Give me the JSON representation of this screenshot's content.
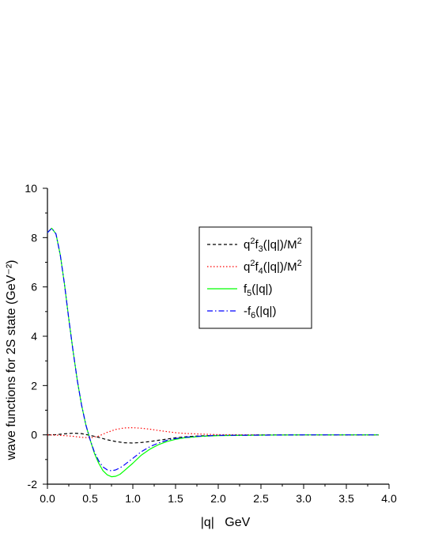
{
  "chart_data": {
    "type": "line",
    "xlabel": "|q|   GeV",
    "ylabel": "wave functions for 2S state (GeV⁻²)",
    "xlim": [
      0.0,
      4.0
    ],
    "ylim": [
      -2,
      10
    ],
    "xticks": [
      "0.0",
      "0.5",
      "1.0",
      "1.5",
      "2.0",
      "2.5",
      "3.0",
      "3.5",
      "4.0"
    ],
    "yticks": [
      "-2",
      "0",
      "2",
      "4",
      "6",
      "8",
      "10"
    ],
    "grid": false,
    "legend_position": "top-right",
    "series": [
      {
        "name": "q²f₃(|q|)/M²",
        "color": "#000000",
        "dash": "dashed",
        "x": [
          0.0,
          0.1,
          0.2,
          0.3,
          0.4,
          0.5,
          0.6,
          0.7,
          0.8,
          0.9,
          1.0,
          1.1,
          1.2,
          1.3,
          1.4,
          1.5,
          1.6,
          1.8,
          2.0,
          2.5,
          3.0,
          3.5,
          3.88
        ],
        "y": [
          0.0,
          0.01,
          0.04,
          0.07,
          0.05,
          -0.02,
          -0.1,
          -0.2,
          -0.27,
          -0.32,
          -0.33,
          -0.31,
          -0.27,
          -0.22,
          -0.17,
          -0.12,
          -0.08,
          -0.04,
          -0.02,
          0.0,
          0.0,
          0.0,
          0.0
        ]
      },
      {
        "name": "q²f₄(|q|)/M²",
        "color": "#ff0000",
        "dash": "dotted",
        "x": [
          0.0,
          0.1,
          0.2,
          0.3,
          0.4,
          0.5,
          0.6,
          0.7,
          0.8,
          0.9,
          1.0,
          1.1,
          1.2,
          1.3,
          1.4,
          1.5,
          1.6,
          1.8,
          2.0,
          2.5,
          3.0,
          3.5,
          3.88
        ],
        "y": [
          0.0,
          -0.01,
          -0.03,
          -0.06,
          -0.1,
          -0.12,
          -0.05,
          0.1,
          0.22,
          0.28,
          0.29,
          0.27,
          0.23,
          0.18,
          0.13,
          0.09,
          0.06,
          0.03,
          0.01,
          0.0,
          0.0,
          0.0,
          0.0
        ]
      },
      {
        "name": "f₅(|q|)",
        "color": "#00ff00",
        "dash": "solid",
        "x": [
          0.0,
          0.05,
          0.1,
          0.15,
          0.2,
          0.25,
          0.3,
          0.35,
          0.4,
          0.45,
          0.5,
          0.55,
          0.6,
          0.65,
          0.7,
          0.75,
          0.8,
          0.85,
          0.9,
          1.0,
          1.1,
          1.2,
          1.3,
          1.4,
          1.5,
          1.6,
          1.8,
          2.0,
          2.5,
          3.0,
          3.5,
          3.88
        ],
        "y": [
          8.2,
          8.38,
          8.15,
          7.3,
          6.1,
          4.7,
          3.4,
          2.2,
          1.2,
          0.4,
          -0.2,
          -0.75,
          -1.15,
          -1.45,
          -1.62,
          -1.7,
          -1.68,
          -1.6,
          -1.45,
          -1.15,
          -0.82,
          -0.58,
          -0.4,
          -0.27,
          -0.18,
          -0.12,
          -0.06,
          -0.03,
          -0.01,
          0.0,
          0.0,
          0.0
        ]
      },
      {
        "name": "-f₆(|q|)",
        "color": "#0000ff",
        "dash": "dashdot",
        "x": [
          0.0,
          0.05,
          0.1,
          0.15,
          0.2,
          0.25,
          0.3,
          0.35,
          0.4,
          0.45,
          0.5,
          0.55,
          0.6,
          0.65,
          0.7,
          0.75,
          0.8,
          0.85,
          0.9,
          1.0,
          1.1,
          1.2,
          1.3,
          1.4,
          1.5,
          1.6,
          1.8,
          2.0,
          2.5,
          3.0,
          3.5,
          3.88
        ],
        "y": [
          8.2,
          8.38,
          8.15,
          7.3,
          6.1,
          4.7,
          3.4,
          2.2,
          1.2,
          0.4,
          -0.2,
          -0.7,
          -1.05,
          -1.3,
          -1.42,
          -1.46,
          -1.42,
          -1.34,
          -1.22,
          -0.95,
          -0.68,
          -0.48,
          -0.33,
          -0.22,
          -0.15,
          -0.1,
          -0.05,
          -0.02,
          -0.01,
          0.0,
          0.0,
          0.0
        ]
      }
    ]
  }
}
